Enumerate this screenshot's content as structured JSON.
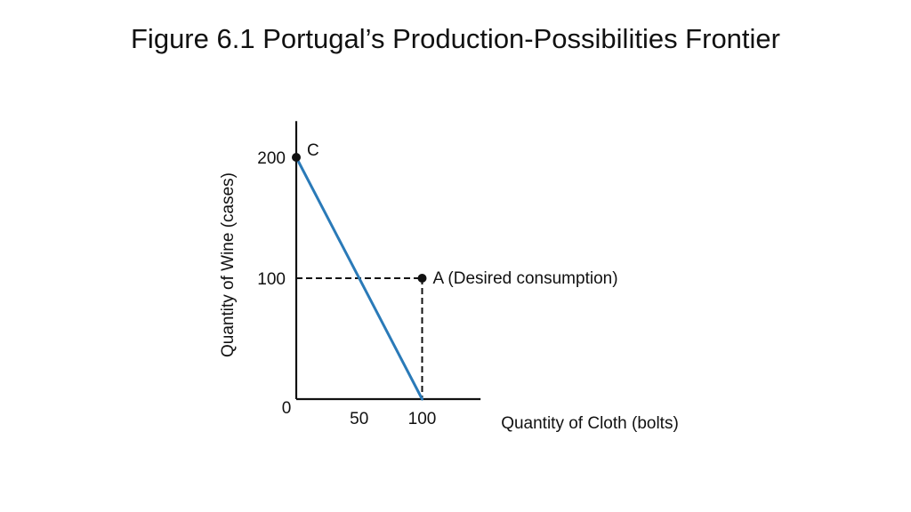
{
  "slide": {
    "title": "Figure 6.1 Portugal’s Production-Possibilities Frontier"
  },
  "colors": {
    "frontier": "#2a7ab8",
    "axis": "#111111",
    "point": "#111111"
  },
  "chart_data": {
    "type": "line",
    "title": "",
    "xlabel": "Quantity of Cloth (bolts)",
    "ylabel": "Quantity of Wine (cases)",
    "origin_label": "0",
    "xlim": [
      0,
      145
    ],
    "ylim": [
      0,
      230
    ],
    "x_ticks": [
      {
        "value": 50,
        "label": "50"
      },
      {
        "value": 100,
        "label": "100"
      }
    ],
    "y_ticks": [
      {
        "value": 200,
        "label": "200"
      },
      {
        "value": 100,
        "label": "100"
      }
    ],
    "series": [
      {
        "x": [
          0,
          100
        ],
        "y": [
          200,
          0
        ]
      }
    ],
    "points": [
      {
        "id": "C",
        "label": "C",
        "x": 0,
        "y": 200
      },
      {
        "id": "A",
        "label": "A (Desired consumption)",
        "x": 100,
        "y": 100
      }
    ],
    "reference_lines": [
      {
        "from": [
          0,
          100
        ],
        "to": [
          100,
          100
        ],
        "style": "dashed"
      },
      {
        "from": [
          100,
          100
        ],
        "to": [
          100,
          0
        ],
        "style": "dashed"
      }
    ],
    "grid": false,
    "legend": "none"
  }
}
